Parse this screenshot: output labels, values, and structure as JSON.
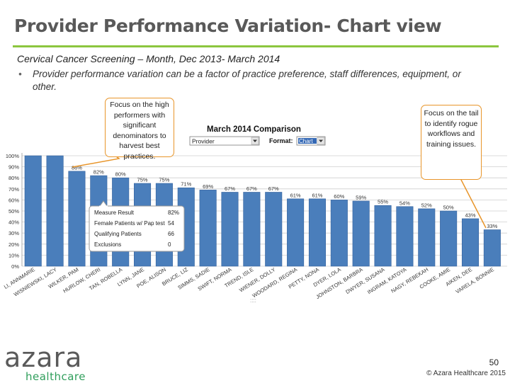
{
  "slide": {
    "title": "Provider Performance Variation- Chart view",
    "subtitle": "Cervical Cancer Screening – Month,  Dec 2013- March 2014",
    "bullet_marker": "•",
    "bullet": "Provider performance variation can be a factor of practice preference, staff differences, equipment, or other.",
    "callout_left": "Focus on the high performers with significant denominators to harvest best practices.",
    "callout_right": "Focus on the tail to identify rogue workflows and training issues.",
    "page_number": "50",
    "copyright": "© Azara Healthcare 2015",
    "logo": {
      "main": "azara",
      "sub": "healthcare"
    },
    "colors": {
      "accent_green": "#8cc63f",
      "bar": "#4a7ebb",
      "callout_border": "#e8952a",
      "logo_green": "#2f9e5b"
    }
  },
  "chart_data": {
    "type": "bar",
    "title": "March 2014 Comparison",
    "controls": {
      "provider_label": "Provider",
      "format_label": "Format:",
      "format_value": "Chart"
    },
    "categories": [
      "LI, ANNMARIE",
      "WISNIEWSKI, LACY",
      "WILKER, PAM",
      "HURLOW, CHERI",
      "TAN, ROBELLA",
      "LYNN, JANE",
      "POE, ALISON",
      "BRUCE, LIZ",
      "SIMMS, SADIE",
      "SWIFT, NORMA",
      "TREND, ISLE",
      "WIENER, DOLLY",
      "WOODARD, REGINA",
      "PETTY, NONA",
      "DYER, LOLA",
      "JOHNSTON, BARBRA",
      "DWYER, SUSANA",
      "INGRAM, KATOYA",
      "NAGY, REBEKAH",
      "COOKE, AMIE",
      "AIKEN, DEE",
      "VARELA, BONNIE"
    ],
    "values": [
      100,
      100,
      86,
      82,
      80,
      75,
      75,
      71,
      69,
      67,
      67,
      67,
      61,
      61,
      60,
      59,
      55,
      54,
      52,
      50,
      43,
      33
    ],
    "value_labels": [
      "",
      "",
      "86%",
      "82%",
      "80%",
      "75%",
      "75%",
      "71%",
      "69%",
      "67%",
      "67%",
      "67%",
      "61%",
      "61%",
      "60%",
      "59%",
      "55%",
      "54%",
      "52%",
      "50%",
      "43%",
      "33%"
    ],
    "ylim": [
      0,
      100
    ],
    "yticks": [
      "0%",
      "10%",
      "20%",
      "30%",
      "40%",
      "50%",
      "60%",
      "70%",
      "80%",
      "90%",
      "100%"
    ],
    "tooltip": {
      "rows": [
        {
          "label": "Measure Result",
          "value": "82%"
        },
        {
          "label": "Female Patients w/ Pap test",
          "value": "54"
        },
        {
          "label": "Qualifying Patients",
          "value": "66"
        },
        {
          "label": "Exclusions",
          "value": "0"
        }
      ]
    },
    "footer_mark": "::::"
  }
}
